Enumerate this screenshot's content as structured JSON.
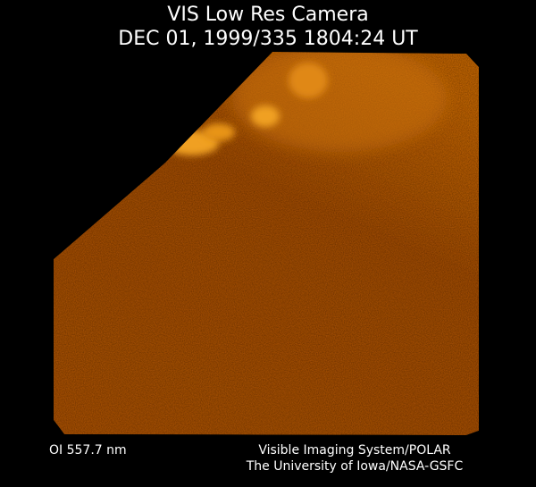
{
  "header": {
    "title": "VIS Low Res Camera",
    "timestamp": "DEC 01, 1999/335 1804:24 UT"
  },
  "footer": {
    "filter": "OI 557.7 nm",
    "credit": [
      "Visible Imaging System/POLAR",
      "The University of Iowa/NASA-GSFC"
    ]
  }
}
